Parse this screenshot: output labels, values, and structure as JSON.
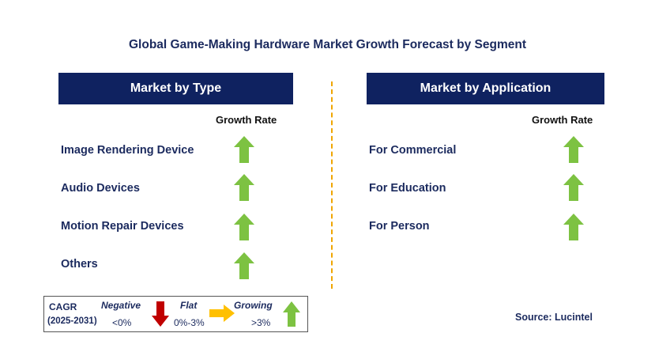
{
  "title": "Global Game-Making Hardware Market Growth Forecast by Segment",
  "left_panel": {
    "header": "Market by Type",
    "growth_rate_label": "Growth Rate",
    "items": [
      {
        "label": "Image Rendering Device",
        "trend": "growing"
      },
      {
        "label": "Audio Devices",
        "trend": "growing"
      },
      {
        "label": "Motion Repair Devices",
        "trend": "growing"
      },
      {
        "label": "Others",
        "trend": "growing"
      }
    ]
  },
  "right_panel": {
    "header": "Market by Application",
    "growth_rate_label": "Growth Rate",
    "items": [
      {
        "label": "For Commercial",
        "trend": "growing"
      },
      {
        "label": "For Education",
        "trend": "growing"
      },
      {
        "label": "For Person",
        "trend": "growing"
      }
    ]
  },
  "legend": {
    "cagr": "CAGR",
    "period": "(2025-2031)",
    "negative": {
      "label": "Negative",
      "range": "<0%",
      "color": "#c00000",
      "icon": "arrow-down-icon"
    },
    "flat": {
      "label": "Flat",
      "range": "0%-3%",
      "color": "#ffc000",
      "icon": "arrow-right-icon"
    },
    "growing": {
      "label": "Growing",
      "range": ">3%",
      "color": "#7dc242",
      "icon": "arrow-up-icon"
    }
  },
  "source": "Source: Lucintel",
  "colors": {
    "header_bg": "#0f2260",
    "text": "#1b2a5e",
    "divider": "#f0a500"
  }
}
